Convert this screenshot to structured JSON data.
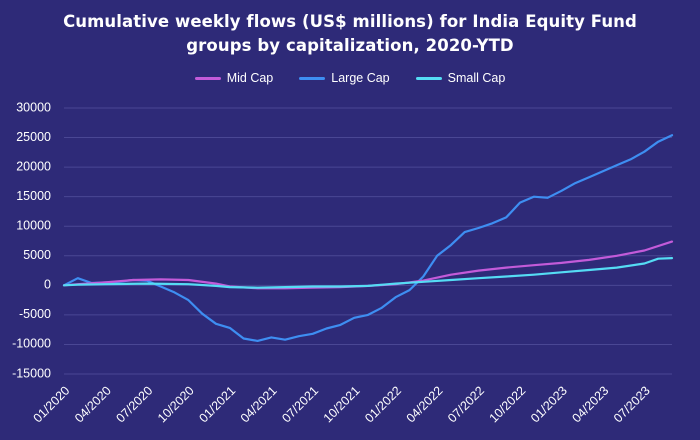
{
  "title_line1": "Cumulative weekly flows (US$ millions) for India Equity Fund",
  "title_line2": "groups by capitalization, 2020-YTD",
  "colors": {
    "background": "#2e2a78",
    "grid": "#4a4794",
    "mid_cap": "#c35bd9",
    "large_cap": "#3e8ef2",
    "small_cap": "#55dcf4"
  },
  "chart_data": {
    "type": "line",
    "title": "Cumulative weekly flows (US$ millions) for India Equity Fund groups by capitalization, 2020-YTD",
    "xlabel": "",
    "ylabel": "",
    "ylim": [
      -15000,
      30000
    ],
    "grid": true,
    "legend_position": "top-center",
    "y_ticks": [
      "30000",
      "25000",
      "20000",
      "15000",
      "10000",
      "5000",
      "0",
      "-5000",
      "-10000",
      "-15000"
    ],
    "x_ticks": [
      "01/2020",
      "04/2020",
      "07/2020",
      "10/2020",
      "01/2021",
      "04/2021",
      "07/2021",
      "10/2021",
      "01/2022",
      "04/2022",
      "07/2022",
      "10/2022",
      "01/2023",
      "04/2023",
      "07/2023"
    ],
    "series": [
      {
        "name": "Mid Cap",
        "color": "#c35bd9",
        "points": [
          [
            "01/2020",
            0
          ],
          [
            "02/2020",
            200
          ],
          [
            "04/2020",
            500
          ],
          [
            "06/2020",
            900
          ],
          [
            "08/2020",
            1000
          ],
          [
            "10/2020",
            900
          ],
          [
            "12/2020",
            300
          ],
          [
            "01/2021",
            -200
          ],
          [
            "03/2021",
            -500
          ],
          [
            "05/2021",
            -500
          ],
          [
            "07/2021",
            -400
          ],
          [
            "09/2021",
            -300
          ],
          [
            "11/2021",
            -100
          ],
          [
            "01/2022",
            200
          ],
          [
            "03/2022",
            800
          ],
          [
            "05/2022",
            1800
          ],
          [
            "07/2022",
            2500
          ],
          [
            "09/2022",
            3000
          ],
          [
            "11/2022",
            3400
          ],
          [
            "01/2023",
            3800
          ],
          [
            "03/2023",
            4300
          ],
          [
            "05/2023",
            5000
          ],
          [
            "07/2023",
            5900
          ],
          [
            "09/2023",
            7400
          ]
        ]
      },
      {
        "name": "Large Cap",
        "color": "#3e8ef2",
        "points": [
          [
            "01/2020",
            0
          ],
          [
            "02/2020",
            1200
          ],
          [
            "03/2020",
            400
          ],
          [
            "05/2020",
            600
          ],
          [
            "06/2020",
            900
          ],
          [
            "07/2020",
            800
          ],
          [
            "08/2020",
            -200
          ],
          [
            "09/2020",
            -1200
          ],
          [
            "10/2020",
            -2500
          ],
          [
            "11/2020",
            -4800
          ],
          [
            "12/2020",
            -6500
          ],
          [
            "01/2021",
            -7200
          ],
          [
            "02/2021",
            -9000
          ],
          [
            "03/2021",
            -9400
          ],
          [
            "04/2021",
            -8800
          ],
          [
            "05/2021",
            -9200
          ],
          [
            "06/2021",
            -8600
          ],
          [
            "07/2021",
            -8200
          ],
          [
            "08/2021",
            -7300
          ],
          [
            "09/2021",
            -6700
          ],
          [
            "10/2021",
            -5500
          ],
          [
            "11/2021",
            -5000
          ],
          [
            "12/2021",
            -3800
          ],
          [
            "01/2022",
            -2000
          ],
          [
            "02/2022",
            -800
          ],
          [
            "03/2022",
            1500
          ],
          [
            "04/2022",
            5000
          ],
          [
            "05/2022",
            6800
          ],
          [
            "06/2022",
            9000
          ],
          [
            "07/2022",
            9700
          ],
          [
            "08/2022",
            10500
          ],
          [
            "09/2022",
            11500
          ],
          [
            "10/2022",
            14000
          ],
          [
            "11/2022",
            15000
          ],
          [
            "12/2022",
            14800
          ],
          [
            "01/2023",
            16000
          ],
          [
            "02/2023",
            17300
          ],
          [
            "03/2023",
            18300
          ],
          [
            "04/2023",
            19300
          ],
          [
            "05/2023",
            20300
          ],
          [
            "06/2023",
            21300
          ],
          [
            "07/2023",
            22600
          ],
          [
            "08/2023",
            24300
          ],
          [
            "09/2023",
            25400
          ]
        ]
      },
      {
        "name": "Small Cap",
        "color": "#55dcf4",
        "points": [
          [
            "01/2020",
            0
          ],
          [
            "02/2020",
            100
          ],
          [
            "04/2020",
            200
          ],
          [
            "07/2020",
            300
          ],
          [
            "10/2020",
            200
          ],
          [
            "12/2020",
            -100
          ],
          [
            "01/2021",
            -300
          ],
          [
            "03/2021",
            -400
          ],
          [
            "05/2021",
            -300
          ],
          [
            "07/2021",
            -200
          ],
          [
            "09/2021",
            -200
          ],
          [
            "11/2021",
            -100
          ],
          [
            "01/2022",
            300
          ],
          [
            "03/2022",
            600
          ],
          [
            "05/2022",
            900
          ],
          [
            "07/2022",
            1200
          ],
          [
            "09/2022",
            1500
          ],
          [
            "11/2022",
            1800
          ],
          [
            "01/2023",
            2200
          ],
          [
            "03/2023",
            2600
          ],
          [
            "05/2023",
            3000
          ],
          [
            "07/2023",
            3700
          ],
          [
            "08/2023",
            4500
          ],
          [
            "09/2023",
            4600
          ]
        ]
      }
    ]
  }
}
